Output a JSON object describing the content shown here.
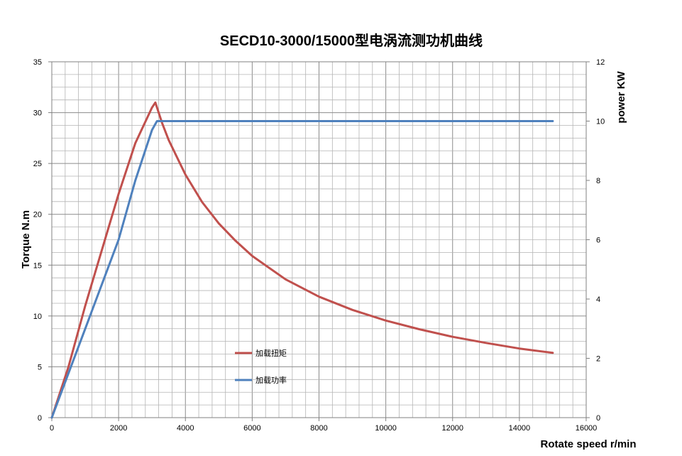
{
  "chart_data": {
    "type": "line",
    "title": "SECD10-3000/15000型电涡流测功机曲线",
    "xlabel": "Rotate speed r/min",
    "ylabel_left": "Torque N.m",
    "ylabel_right": "power KW",
    "xlim": [
      0,
      16000
    ],
    "ylim_left": [
      0,
      35
    ],
    "ylim_right": [
      0,
      12
    ],
    "x_ticks": [
      "0",
      "2000",
      "4000",
      "6000",
      "8000",
      "10000",
      "12000",
      "14000",
      "16000"
    ],
    "y_left_ticks": [
      "0",
      "5",
      "10",
      "15",
      "20",
      "25",
      "30",
      "35"
    ],
    "y_right_ticks": [
      "0",
      "2",
      "4",
      "6",
      "8",
      "10",
      "12"
    ],
    "grid": true,
    "legend_position": "center-left",
    "series": [
      {
        "name": "加载扭矩",
        "axis": "left",
        "color": "#c0504d",
        "points": [
          [
            0,
            0
          ],
          [
            500,
            5
          ],
          [
            1000,
            11
          ],
          [
            1500,
            16.5
          ],
          [
            2000,
            22
          ],
          [
            2500,
            27
          ],
          [
            3000,
            30.5
          ],
          [
            3100,
            31
          ],
          [
            3300,
            29
          ],
          [
            3500,
            27.3
          ],
          [
            4000,
            23.9
          ],
          [
            4500,
            21.2
          ],
          [
            5000,
            19.1
          ],
          [
            5500,
            17.4
          ],
          [
            6000,
            15.9
          ],
          [
            7000,
            13.6
          ],
          [
            8000,
            11.9
          ],
          [
            9000,
            10.6
          ],
          [
            10000,
            9.55
          ],
          [
            11000,
            8.7
          ],
          [
            12000,
            7.95
          ],
          [
            13000,
            7.35
          ],
          [
            14000,
            6.8
          ],
          [
            15000,
            6.37
          ]
        ]
      },
      {
        "name": "加载功率",
        "axis": "right",
        "color": "#4f81bd",
        "points": [
          [
            0,
            0
          ],
          [
            1000,
            3
          ],
          [
            2000,
            6
          ],
          [
            2500,
            8
          ],
          [
            3000,
            9.7
          ],
          [
            3150,
            10
          ],
          [
            5000,
            10
          ],
          [
            10000,
            10
          ],
          [
            15000,
            10
          ]
        ]
      }
    ]
  }
}
